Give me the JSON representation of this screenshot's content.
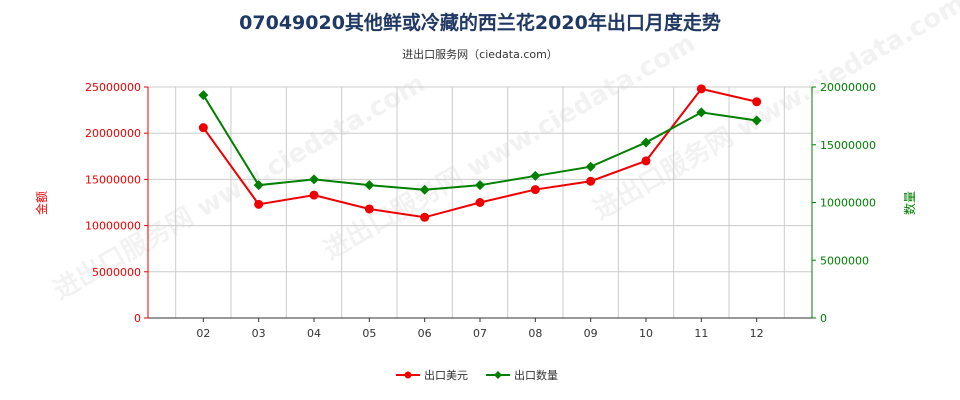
{
  "title": "07049020其他鲜或冷藏的西兰花2020年出口月度走势",
  "subtitle": "进出口服务网（ciedata.com）",
  "watermark": "进出口服务网 www.ciedata.com",
  "colors": {
    "left": "#ee0000",
    "right": "#008000",
    "grid": "#cccccc",
    "axis": "#333333"
  },
  "chart_data": {
    "type": "line",
    "categories": [
      "02",
      "03",
      "04",
      "05",
      "06",
      "07",
      "08",
      "09",
      "10",
      "11",
      "12"
    ],
    "ylabel_left": "金额",
    "ylabel_right": "数量",
    "ylim_left": [
      0,
      25000000
    ],
    "ylim_right": [
      0,
      20000000
    ],
    "yticks_left": [
      "0",
      "5000000",
      "10000000",
      "15000000",
      "20000000",
      "25000000"
    ],
    "yticks_right": [
      "0",
      "5000000",
      "10000000",
      "15000000",
      "20000000"
    ],
    "grid": true,
    "legend_position": "bottom",
    "series": [
      {
        "name": "出口美元",
        "axis": "left",
        "marker": "circle",
        "color": "#ee0000",
        "values": [
          20600000,
          12300000,
          13300000,
          11800000,
          10900000,
          12500000,
          13900000,
          14800000,
          17000000,
          24800000,
          23400000
        ]
      },
      {
        "name": "出口数量",
        "axis": "right",
        "marker": "diamond",
        "color": "#008000",
        "values": [
          19300000,
          11500000,
          12000000,
          11500000,
          11100000,
          11500000,
          12300000,
          13100000,
          15200000,
          17800000,
          17100000
        ]
      }
    ]
  }
}
